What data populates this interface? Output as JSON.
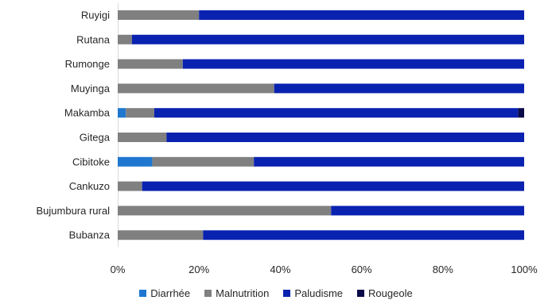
{
  "chart_data": {
    "type": "bar",
    "orientation": "horizontal",
    "stacked": "percent",
    "categories": [
      "Ruyigi",
      "Rutana",
      "Rumonge",
      "Muyinga",
      "Makamba",
      "Gitega",
      "Cibitoke",
      "Cankuzo",
      "Bujumbura rural",
      "Bubanza"
    ],
    "series": [
      {
        "name": "Diarrhée",
        "color": "#1f77d0",
        "values": [
          0,
          0,
          0,
          0,
          2,
          0,
          8.5,
          0,
          0,
          0
        ]
      },
      {
        "name": "Malnutrition",
        "color": "#808080",
        "values": [
          20,
          3.5,
          16,
          38.5,
          7,
          12,
          25,
          6,
          52.5,
          21
        ]
      },
      {
        "name": "Paludisme",
        "color": "#0a22b0",
        "values": [
          80,
          96.5,
          84,
          61.5,
          89.5,
          88,
          66.5,
          94,
          47.5,
          79
        ]
      },
      {
        "name": "Rougeole",
        "color": "#0a0a4a",
        "values": [
          0,
          0,
          0,
          0,
          1.5,
          0,
          0,
          0,
          0,
          0
        ]
      }
    ],
    "xticks": [
      "0%",
      "20%",
      "40%",
      "60%",
      "80%",
      "100%"
    ],
    "xlim": [
      0,
      100
    ],
    "title": "",
    "xlabel": "",
    "ylabel": "",
    "grid": false,
    "legend_position": "bottom"
  }
}
